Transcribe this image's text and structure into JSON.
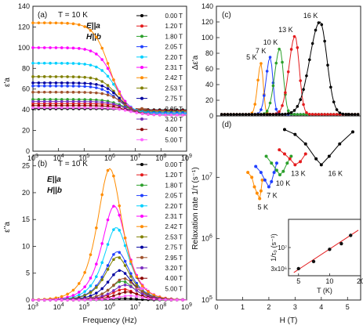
{
  "chart_data": [
    {
      "panel": "(a)",
      "type": "line",
      "annotation": "T = 10 K",
      "conditions": [
        "E||a",
        "H||b"
      ],
      "ylabel": "ε'a",
      "xlabel": "",
      "xscale": "log",
      "xlim": [
        1000,
        1000000000
      ],
      "ylim": [
        0,
        140
      ],
      "xticks": [
        "10^3",
        "10^4",
        "10^5",
        "10^6",
        "10^7",
        "10^8",
        "10^9"
      ],
      "yticks": [
        0,
        20,
        40,
        60,
        80,
        100,
        120,
        140
      ],
      "series": [
        {
          "name": "0.00 T",
          "color": "#000000",
          "lo": 40,
          "hi": 41,
          "fc": 3000000
        },
        {
          "name": "1.20 T",
          "color": "#e41a1c",
          "lo": 39,
          "hi": 46,
          "fc": 3500000
        },
        {
          "name": "1.80 T",
          "color": "#2ca02c",
          "lo": 38,
          "hi": 50,
          "fc": 3000000
        },
        {
          "name": "2.05 T",
          "color": "#1f3fff",
          "lo": 37,
          "hi": 63,
          "fc": 2000000
        },
        {
          "name": "2.20 T",
          "color": "#00d0ff",
          "lo": 36,
          "hi": 85,
          "fc": 1800000
        },
        {
          "name": "2.31 T",
          "color": "#ff00ff",
          "lo": 35,
          "hi": 100,
          "fc": 1500000
        },
        {
          "name": "2.42 T",
          "color": "#ff8c00",
          "lo": 35,
          "hi": 124,
          "fc": 1000000
        },
        {
          "name": "2.53 T",
          "color": "#808000",
          "lo": 35,
          "hi": 72,
          "fc": 2000000
        },
        {
          "name": "2.75 T",
          "color": "#0000a0",
          "lo": 35,
          "hi": 66,
          "fc": 2500000
        },
        {
          "name": "2.95 T",
          "color": "#a0522d",
          "lo": 35,
          "hi": 57,
          "fc": 3500000
        },
        {
          "name": "3.20 T",
          "color": "#7b2cbf",
          "lo": 35,
          "hi": 48,
          "fc": 4000000
        },
        {
          "name": "4.00 T",
          "color": "#8b0000",
          "lo": 35,
          "hi": 44,
          "fc": 5000000
        },
        {
          "name": "5.00 T",
          "color": "#ff66ff",
          "lo": 35,
          "hi": 42,
          "fc": 6000000
        }
      ]
    },
    {
      "panel": "(b)",
      "type": "line",
      "annotation": "T = 10 K",
      "conditions": [
        "E||a",
        "H||b"
      ],
      "ylabel": "ε''a",
      "xlabel": "Frequency (Hz)",
      "xscale": "log",
      "xlim": [
        1000,
        1000000000
      ],
      "ylim": [
        0,
        27
      ],
      "xticks": [
        "10^3",
        "10^4",
        "10^5",
        "10^6",
        "10^7",
        "10^8",
        "10^9"
      ],
      "yticks": [
        0,
        5,
        10,
        15,
        20,
        25
      ],
      "series": [
        {
          "name": "0.00 T",
          "color": "#000000",
          "peak": 0.3,
          "fc": 3000000
        },
        {
          "name": "1.20 T",
          "color": "#e41a1c",
          "peak": 2.0,
          "fc": 3500000
        },
        {
          "name": "1.80 T",
          "color": "#2ca02c",
          "peak": 3.5,
          "fc": 3000000
        },
        {
          "name": "2.05 T",
          "color": "#1f3fff",
          "peak": 9.0,
          "fc": 2000000
        },
        {
          "name": "2.20 T",
          "color": "#00d0ff",
          "peak": 13.5,
          "fc": 1800000
        },
        {
          "name": "2.31 T",
          "color": "#ff00ff",
          "peak": 17.5,
          "fc": 1500000
        },
        {
          "name": "2.42 T",
          "color": "#ff8c00",
          "peak": 24.5,
          "fc": 1000000
        },
        {
          "name": "2.53 T",
          "color": "#808000",
          "peak": 8.0,
          "fc": 2000000
        },
        {
          "name": "2.75 T",
          "color": "#0000a0",
          "peak": 5.5,
          "fc": 2500000
        },
        {
          "name": "2.95 T",
          "color": "#a0522d",
          "peak": 4.0,
          "fc": 3500000
        },
        {
          "name": "3.20 T",
          "color": "#7b2cbf",
          "peak": 2.8,
          "fc": 4000000
        },
        {
          "name": "4.00 T",
          "color": "#8b0000",
          "peak": 1.5,
          "fc": 5000000
        },
        {
          "name": "5.00 T",
          "color": "#ff66ff",
          "peak": 0.8,
          "fc": 6000000
        }
      ]
    },
    {
      "panel": "(c)",
      "type": "line",
      "ylabel": "Δε'a",
      "xlabel": "",
      "xlim": [
        0,
        5.5
      ],
      "ylim": [
        0,
        140
      ],
      "yticks": [
        0,
        20,
        40,
        60,
        80,
        100,
        120,
        140
      ],
      "series": [
        {
          "name": "5 K",
          "color": "#ff8c00",
          "Hc": 1.7,
          "peak": 65,
          "w": 0.18
        },
        {
          "name": "7 K",
          "color": "#1f3fff",
          "Hc": 2.05,
          "peak": 73,
          "w": 0.22
        },
        {
          "name": "10 K",
          "color": "#2ca02c",
          "Hc": 2.42,
          "peak": 84,
          "w": 0.28
        },
        {
          "name": "13 K",
          "color": "#e41a1c",
          "Hc": 3.0,
          "peak": 100,
          "w": 0.33
        },
        {
          "name": "16 K",
          "color": "#000000",
          "Hc": 3.95,
          "peak": 118,
          "w": 0.55
        }
      ]
    },
    {
      "panel": "(d)",
      "type": "line",
      "ylabel": "Relaxation rate  1/τ (s⁻¹)",
      "xlabel": "H (T)",
      "xlim": [
        0,
        5.5
      ],
      "ylim": [
        100000,
        100000000
      ],
      "yscale": "log",
      "xticks": [
        0,
        1,
        2,
        3,
        4,
        5
      ],
      "yticks": [
        "10^5",
        "10^6",
        "10^7"
      ],
      "series": [
        {
          "name": "5 K",
          "color": "#ff8c00",
          "points": [
            [
              1.2,
              12000000
            ],
            [
              1.35,
              10000000
            ],
            [
              1.45,
              7000000
            ],
            [
              1.55,
              5500000
            ],
            [
              1.65,
              4500000
            ],
            [
              1.7,
              6000000
            ],
            [
              1.75,
              9000000
            ]
          ]
        },
        {
          "name": "7 K",
          "color": "#1f3fff",
          "points": [
            [
              1.5,
              15000000
            ],
            [
              1.7,
              12000000
            ],
            [
              1.85,
              9000000
            ],
            [
              2.0,
              7000000
            ],
            [
              2.1,
              8500000
            ],
            [
              2.2,
              12000000
            ],
            [
              2.3,
              17000000
            ]
          ]
        },
        {
          "name": "10 K",
          "color": "#2ca02c",
          "points": [
            [
              1.9,
              22000000
            ],
            [
              2.1,
              17000000
            ],
            [
              2.3,
              13000000
            ],
            [
              2.42,
              11000000
            ],
            [
              2.55,
              12500000
            ],
            [
              2.7,
              17000000
            ],
            [
              2.85,
              22000000
            ]
          ]
        },
        {
          "name": "13 K",
          "color": "#e41a1c",
          "points": [
            [
              2.4,
              28000000
            ],
            [
              2.6,
              24000000
            ],
            [
              2.8,
              20000000
            ],
            [
              3.0,
              16000000
            ],
            [
              3.2,
              18000000
            ],
            [
              3.4,
              24000000
            ]
          ]
        },
        {
          "name": "16 K",
          "color": "#000000",
          "points": [
            [
              2.6,
              60000000
            ],
            [
              3.0,
              50000000
            ],
            [
              3.4,
              35000000
            ],
            [
              3.8,
              20000000
            ],
            [
              4.0,
              16000000
            ],
            [
              4.3,
              22000000
            ],
            [
              4.7,
              35000000
            ],
            [
              5.2,
              55000000
            ]
          ]
        }
      ],
      "inset": {
        "ylabel": "1/τ₀ (s⁻¹)",
        "xlabel": "T (K)",
        "xscale": "log",
        "yscale": "log",
        "xlim": [
          4,
          20
        ],
        "ylim": [
          2000000,
          50000000
        ],
        "xticks": [
          "5",
          "10",
          "20"
        ],
        "yticks": [
          "3x10⁶",
          "10⁷"
        ],
        "points": [
          [
            5,
            3000000
          ],
          [
            7,
            4500000
          ],
          [
            10,
            9000000
          ],
          [
            13,
            12500000
          ],
          [
            16,
            20000000
          ]
        ],
        "fit_color": "#e41a1c"
      }
    }
  ]
}
